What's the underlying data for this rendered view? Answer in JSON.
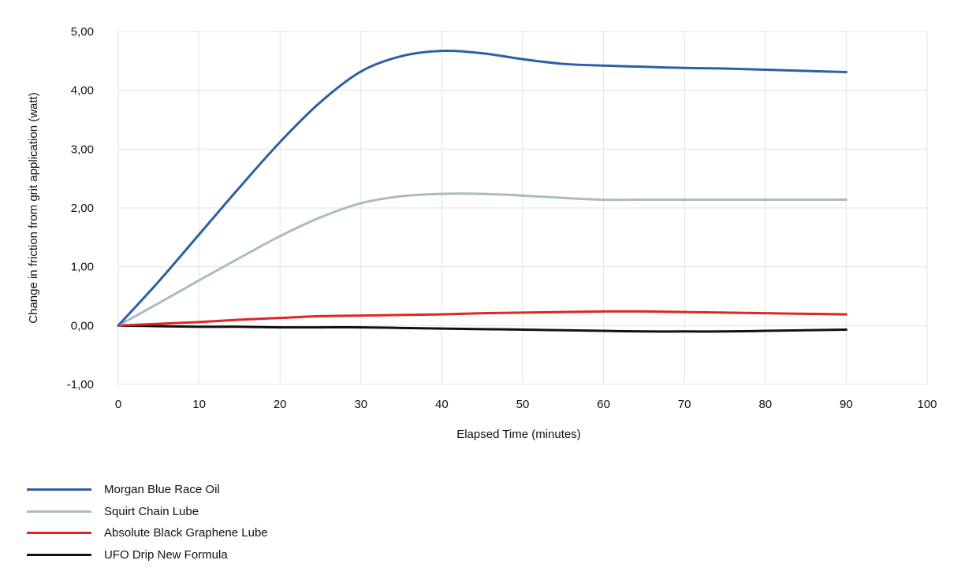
{
  "chart_data": {
    "type": "line",
    "title": "",
    "xlabel": "Elapsed Time (minutes)",
    "ylabel": "Change in friction from grit application (watt)",
    "xlim": [
      0,
      100
    ],
    "ylim": [
      -1,
      5
    ],
    "x_ticks": [
      "0",
      "10",
      "20",
      "30",
      "40",
      "50",
      "60",
      "70",
      "80",
      "90",
      "100"
    ],
    "y_ticks": [
      "-1,00",
      "0,00",
      "1,00",
      "2,00",
      "3,00",
      "4,00",
      "5,00"
    ],
    "grid": true,
    "legend_position": "bottom-left",
    "series": [
      {
        "name": "Morgan Blue Race Oil",
        "color": "#2e5fa3",
        "x": [
          0,
          5,
          10,
          15,
          20,
          25,
          30,
          35,
          40,
          45,
          50,
          55,
          60,
          65,
          70,
          75,
          80,
          85,
          90
        ],
        "y": [
          0,
          0.75,
          1.55,
          2.35,
          3.12,
          3.8,
          4.32,
          4.58,
          4.67,
          4.63,
          4.53,
          4.45,
          4.42,
          4.4,
          4.38,
          4.37,
          4.35,
          4.33,
          4.31
        ]
      },
      {
        "name": "Squirt Chain Lube",
        "color": "#a9bcc5",
        "x": [
          0,
          5,
          10,
          15,
          20,
          25,
          30,
          35,
          40,
          45,
          50,
          55,
          60,
          65,
          70,
          75,
          80,
          85,
          90
        ],
        "y": [
          0,
          0.38,
          0.77,
          1.15,
          1.52,
          1.84,
          2.08,
          2.2,
          2.24,
          2.24,
          2.21,
          2.17,
          2.14,
          2.14,
          2.14,
          2.14,
          2.14,
          2.14,
          2.14
        ]
      },
      {
        "name": "Absolute Black Graphene Lube",
        "color": "#e02525",
        "x": [
          0,
          5,
          10,
          15,
          20,
          25,
          30,
          35,
          40,
          45,
          50,
          55,
          60,
          65,
          70,
          75,
          80,
          85,
          90
        ],
        "y": [
          0,
          0.03,
          0.06,
          0.1,
          0.13,
          0.16,
          0.17,
          0.18,
          0.19,
          0.21,
          0.22,
          0.23,
          0.24,
          0.24,
          0.23,
          0.22,
          0.21,
          0.2,
          0.19
        ]
      },
      {
        "name": "UFO Drip New Formula",
        "color": "#111111",
        "x": [
          0,
          5,
          10,
          15,
          20,
          25,
          30,
          35,
          40,
          45,
          50,
          55,
          60,
          65,
          70,
          75,
          80,
          85,
          90
        ],
        "y": [
          0,
          -0.01,
          -0.02,
          -0.02,
          -0.03,
          -0.03,
          -0.03,
          -0.04,
          -0.05,
          -0.06,
          -0.07,
          -0.08,
          -0.09,
          -0.1,
          -0.1,
          -0.1,
          -0.09,
          -0.08,
          -0.07
        ]
      }
    ]
  }
}
